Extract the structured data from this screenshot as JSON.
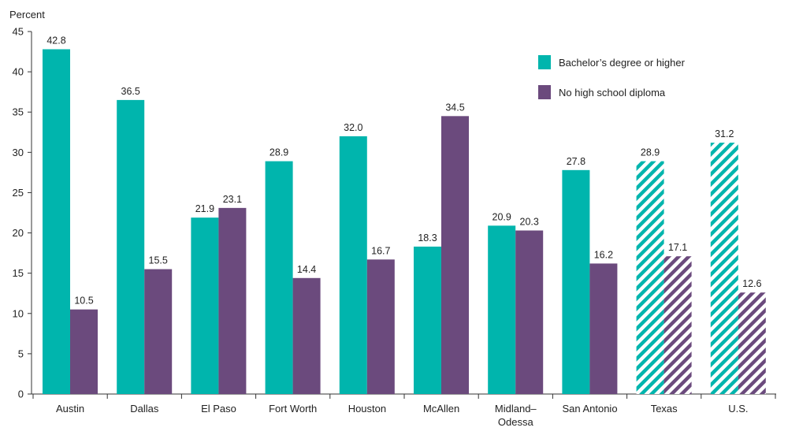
{
  "chart_data": {
    "type": "bar",
    "ylabel": "Percent",
    "ylim": [
      0,
      45
    ],
    "yticks": [
      0,
      5,
      10,
      15,
      20,
      25,
      30,
      35,
      40,
      45
    ],
    "categories": [
      [
        "Austin"
      ],
      [
        "Dallas"
      ],
      [
        "El Paso"
      ],
      [
        "Fort Worth"
      ],
      [
        "Houston"
      ],
      [
        "McAllen"
      ],
      [
        "Midland–",
        "Odessa"
      ],
      [
        "San Antonio"
      ],
      [
        "Texas"
      ],
      [
        "U.S."
      ]
    ],
    "hatched_categories": [
      "Texas",
      "U.S."
    ],
    "series": [
      {
        "name": "Bachelor’s degree or higher",
        "color": "#00b5ad",
        "values": [
          42.8,
          36.5,
          21.9,
          28.9,
          32.0,
          18.3,
          20.9,
          27.8,
          28.9,
          31.2
        ],
        "labels": [
          "42.8",
          "36.5",
          "21.9",
          "28.9",
          "32.0",
          "18.3",
          "20.9",
          "27.8",
          "28.9",
          "31.2"
        ]
      },
      {
        "name": "No high school diploma",
        "color": "#6b4a7d",
        "values": [
          10.5,
          15.5,
          23.1,
          14.4,
          16.7,
          34.5,
          20.3,
          16.2,
          17.1,
          12.6
        ],
        "labels": [
          "10.5",
          "15.5",
          "23.1",
          "14.4",
          "16.7",
          "34.5",
          "20.3",
          "16.2",
          "17.1",
          "12.6"
        ]
      }
    ],
    "legend_position": "top-right",
    "grid": false
  }
}
